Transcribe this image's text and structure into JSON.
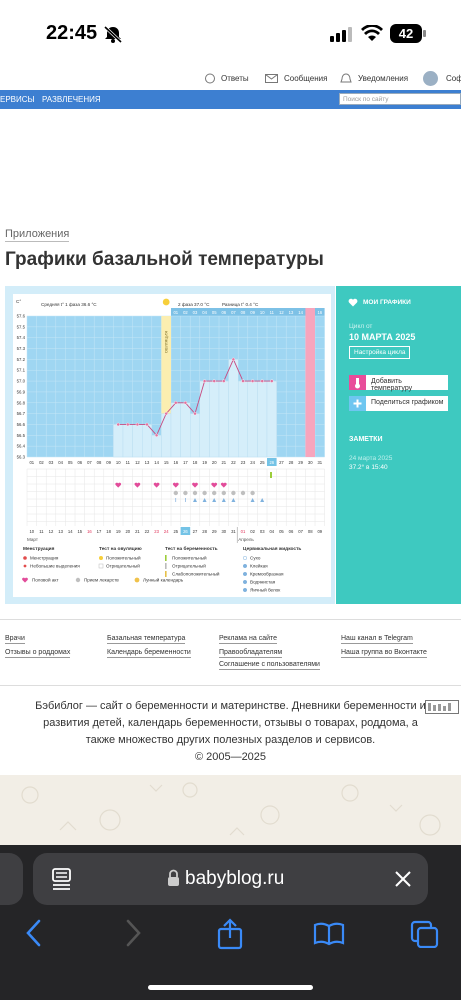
{
  "status_bar": {
    "time": "22:45",
    "battery": "42"
  },
  "site_header": {
    "answers": "Ответы",
    "messages": "Сообщения",
    "notifications": "Уведомления",
    "profile": "Соф"
  },
  "nav": {
    "services": "ЕРВИСЫ",
    "entertainment": "РАЗВЛЕЧЕНИЯ",
    "search_placeholder": "Поиск по сайту"
  },
  "breadcrumb": "Приложения",
  "page_title": "Графики базальной температуры",
  "chart_data": {
    "type": "line",
    "ylabel": "C°",
    "y_ticks": [
      "57.6",
      "57.5",
      "57.4",
      "57.3",
      "57.2",
      "57.1",
      "57.0",
      "56.9",
      "56.8",
      "56.7",
      "56.6",
      "56.5",
      "56.4",
      "56.3"
    ],
    "ylim": [
      56.3,
      57.6
    ],
    "summary_phase1": "Средняя t° 1 фаза 36.6 °С",
    "summary_phase2": "2 фаза 37.0 °С",
    "summary_diff": "Разница t° 0.4 °С",
    "ovulation_label": "ОВУЛЯЦИЯ",
    "cycle_days": [
      "01",
      "02",
      "03",
      "04",
      "05",
      "06",
      "07",
      "08",
      "09",
      "10",
      "11",
      "12",
      "13",
      "14",
      "15",
      "16",
      "17",
      "18",
      "19",
      "20",
      "21",
      "22",
      "23",
      "24",
      "25",
      "26",
      "27",
      "28",
      "29",
      "30",
      "31"
    ],
    "after_ovulation_days": [
      "01",
      "02",
      "03",
      "04",
      "05",
      "06",
      "07",
      "08",
      "09",
      "10",
      "11",
      "12",
      "13",
      "14",
      "15",
      "16"
    ],
    "current_day": "26",
    "temperatures": [
      {
        "day": 10,
        "value": 56.6
      },
      {
        "day": 11,
        "value": 56.6
      },
      {
        "day": 12,
        "value": 56.6
      },
      {
        "day": 13,
        "value": 56.6
      },
      {
        "day": 14,
        "value": 56.5
      },
      {
        "day": 15,
        "value": 56.7
      },
      {
        "day": 16,
        "value": 56.8
      },
      {
        "day": 17,
        "value": 56.8
      },
      {
        "day": 18,
        "value": 56.7
      },
      {
        "day": 19,
        "value": 57.0
      },
      {
        "day": 20,
        "value": 57.0
      },
      {
        "day": 21,
        "value": 57.0
      },
      {
        "day": 22,
        "value": 57.2
      },
      {
        "day": 23,
        "value": 57.0
      },
      {
        "day": 24,
        "value": 57.0
      },
      {
        "day": 25,
        "value": 57.0
      },
      {
        "day": 26,
        "value": 57.0
      }
    ],
    "dates": [
      "10",
      "11",
      "12",
      "13",
      "14",
      "15",
      "16",
      "17",
      "18",
      "19",
      "20",
      "21",
      "22",
      "23",
      "24",
      "25",
      "26",
      "27",
      "28",
      "29",
      "30",
      "31",
      "01",
      "02",
      "03",
      "04",
      "05",
      "06",
      "07",
      "08",
      "09"
    ],
    "month1": "Март",
    "month2": "Апрель",
    "heart_days": [
      19,
      21,
      23,
      25,
      27,
      29,
      30
    ],
    "pill_days": [
      24,
      25,
      26,
      27,
      28,
      29,
      30,
      31,
      32
    ],
    "grid_on": true
  },
  "legend": {
    "menstruation_title": "Менструация",
    "menstruation": "Менструация",
    "spotting": "Небольшие выделения",
    "ovulation_test_title": "Тест на овуляцию",
    "positive": "Положительный",
    "negative": "Отрицательный",
    "pregnancy_test_title": "Тест на беременность",
    "preg_positive": "Положительный",
    "preg_negative": "Отрицательный",
    "weak_positive": "Слабоположительный",
    "mucus_title": "Цервикальная жидкость",
    "dry": "Сухо",
    "sticky": "Клейкая",
    "creamy": "Кремообразная",
    "watery": "Водянистая",
    "egg_white": "Яичный белок",
    "intercourse": "Половой акт",
    "medication": "Прием лекарств",
    "lunar": "Лунный календарь"
  },
  "panel": {
    "my_charts": "МОИ ГРАФИКИ",
    "cycle_from": "Цикл от",
    "cycle_date": "10 МАРТА 2025",
    "settings": "Настройка цикла",
    "add_temp": "Добавить температуру",
    "share": "Поделиться графиком",
    "notes_title": "ЗАМЕТКИ",
    "note_date": "24 марта 2025",
    "note_text": "37.2° в 15:40"
  },
  "footer": {
    "doctors": "Врачи",
    "maternity_reviews": "Отзывы о роддомах",
    "basal_temp": "Базальная температура",
    "pregnancy_calendar": "Календарь беременности",
    "advertising": "Реклама на сайте",
    "copyright_holders": "Правообладателям",
    "user_agreement": "Соглашение с пользователями",
    "telegram": "Наш канал в Telegram",
    "vk": "Наша группа во Вконтакте",
    "about_line1": "Бэбиблог — сайт о беременности и материнстве. Дневники беременности и",
    "about_line2": "развития детей, календарь беременности, отзывы о товарах, роддома, а",
    "about_line3": "также множество других полезных разделов и сервисов.",
    "copyright": "© 2005—2025"
  },
  "browser": {
    "url": "babyblog.ru"
  }
}
